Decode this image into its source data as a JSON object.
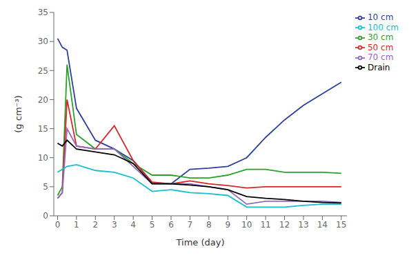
{
  "chart_data": {
    "type": "line",
    "xlabel": "Time (day)",
    "ylabel": "(g cm⁻³)",
    "x": [
      0,
      0.25,
      0.5,
      1,
      2,
      3,
      4,
      5,
      6,
      7,
      8,
      9,
      10,
      11,
      12,
      13,
      14,
      15
    ],
    "series": [
      {
        "name": "10 cm",
        "color": "#2e4099",
        "values": [
          30.5,
          29.0,
          28.5,
          18.5,
          13.0,
          11.5,
          9.5,
          5.7,
          5.5,
          8.0,
          8.2,
          8.5,
          10.0,
          13.5,
          16.5,
          19.0,
          21.0,
          23.0
        ]
      },
      {
        "name": "30 cm",
        "color": "#2ca02c",
        "values": [
          3.5,
          5.0,
          26.0,
          14.0,
          11.5,
          11.5,
          9.0,
          7.0,
          7.0,
          6.5,
          6.5,
          7.0,
          8.0,
          8.0,
          7.5,
          7.5,
          7.5,
          7.3
        ]
      },
      {
        "name": "50 cm",
        "color": "#d62728",
        "values": [
          3.0,
          4.0,
          20.0,
          12.0,
          11.5,
          15.5,
          9.5,
          5.8,
          5.5,
          6.0,
          5.5,
          5.2,
          4.8,
          5.0,
          5.0,
          5.0,
          5.0,
          5.0
        ]
      },
      {
        "name": "70 cm",
        "color": "#9467bd",
        "values": [
          3.0,
          4.0,
          15.0,
          12.0,
          11.5,
          11.5,
          8.5,
          5.5,
          5.5,
          5.5,
          5.0,
          4.5,
          2.0,
          2.5,
          2.5,
          2.5,
          2.5,
          2.3
        ]
      },
      {
        "name": "100 cm",
        "color": "#17becf",
        "values": [
          7.5,
          8.0,
          8.5,
          8.8,
          7.8,
          7.5,
          6.5,
          4.2,
          4.5,
          4.0,
          3.8,
          3.5,
          1.5,
          1.5,
          1.5,
          1.8,
          2.0,
          2.0
        ]
      },
      {
        "name": "Drain",
        "color": "#000000",
        "values": [
          12.5,
          12.0,
          13.0,
          11.5,
          11.0,
          10.5,
          9.0,
          5.5,
          5.5,
          5.3,
          5.0,
          4.5,
          3.3,
          3.0,
          2.8,
          2.5,
          2.3,
          2.2
        ]
      }
    ],
    "xlim": [
      -0.2,
      15.3
    ],
    "xticks": [
      0,
      1,
      2,
      3,
      4,
      5,
      6,
      7,
      8,
      9,
      10,
      11,
      12,
      13,
      14,
      15
    ],
    "ylim": [
      0,
      35
    ],
    "yticks": [
      0,
      5,
      10,
      15,
      20,
      25,
      30,
      35
    ],
    "legend": "upper right",
    "grid": false
  }
}
